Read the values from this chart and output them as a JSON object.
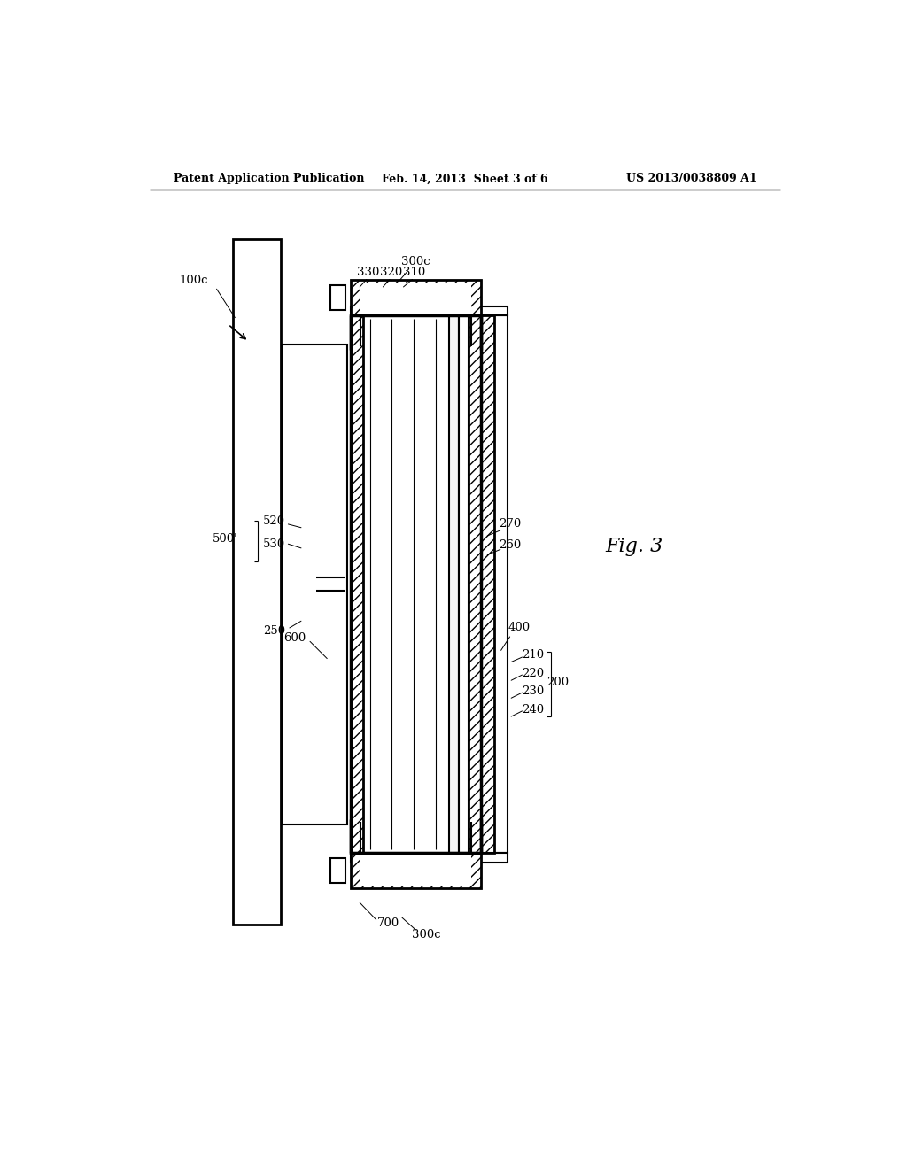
{
  "bg_color": "#ffffff",
  "header_left": "Patent Application Publication",
  "header_center": "Feb. 14, 2013  Sheet 3 of 6",
  "header_right": "US 2013/0038809 A1",
  "fig_caption": "Fig. 3",
  "label_fontsize": 9.5,
  "header_fontsize": 9,
  "fig_caption_fontsize": 16
}
